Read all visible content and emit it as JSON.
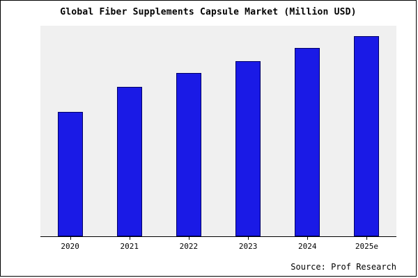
{
  "chart_data": {
    "type": "bar",
    "title": "Global Fiber Supplements Capsule Market (Million USD)",
    "categories": [
      "2020",
      "2021",
      "2022",
      "2023",
      "2024",
      "2025e"
    ],
    "values": [
      183,
      220,
      240,
      258,
      277,
      295
    ],
    "xlabel": "",
    "ylabel": "",
    "ylim": [
      0,
      310
    ],
    "grid": false,
    "legend": false,
    "bar_color": "#1a1ae6",
    "bar_border_color": "#000066",
    "plot_background": "#f0f0f0"
  },
  "footer": {
    "source": "Source: Prof Research"
  }
}
